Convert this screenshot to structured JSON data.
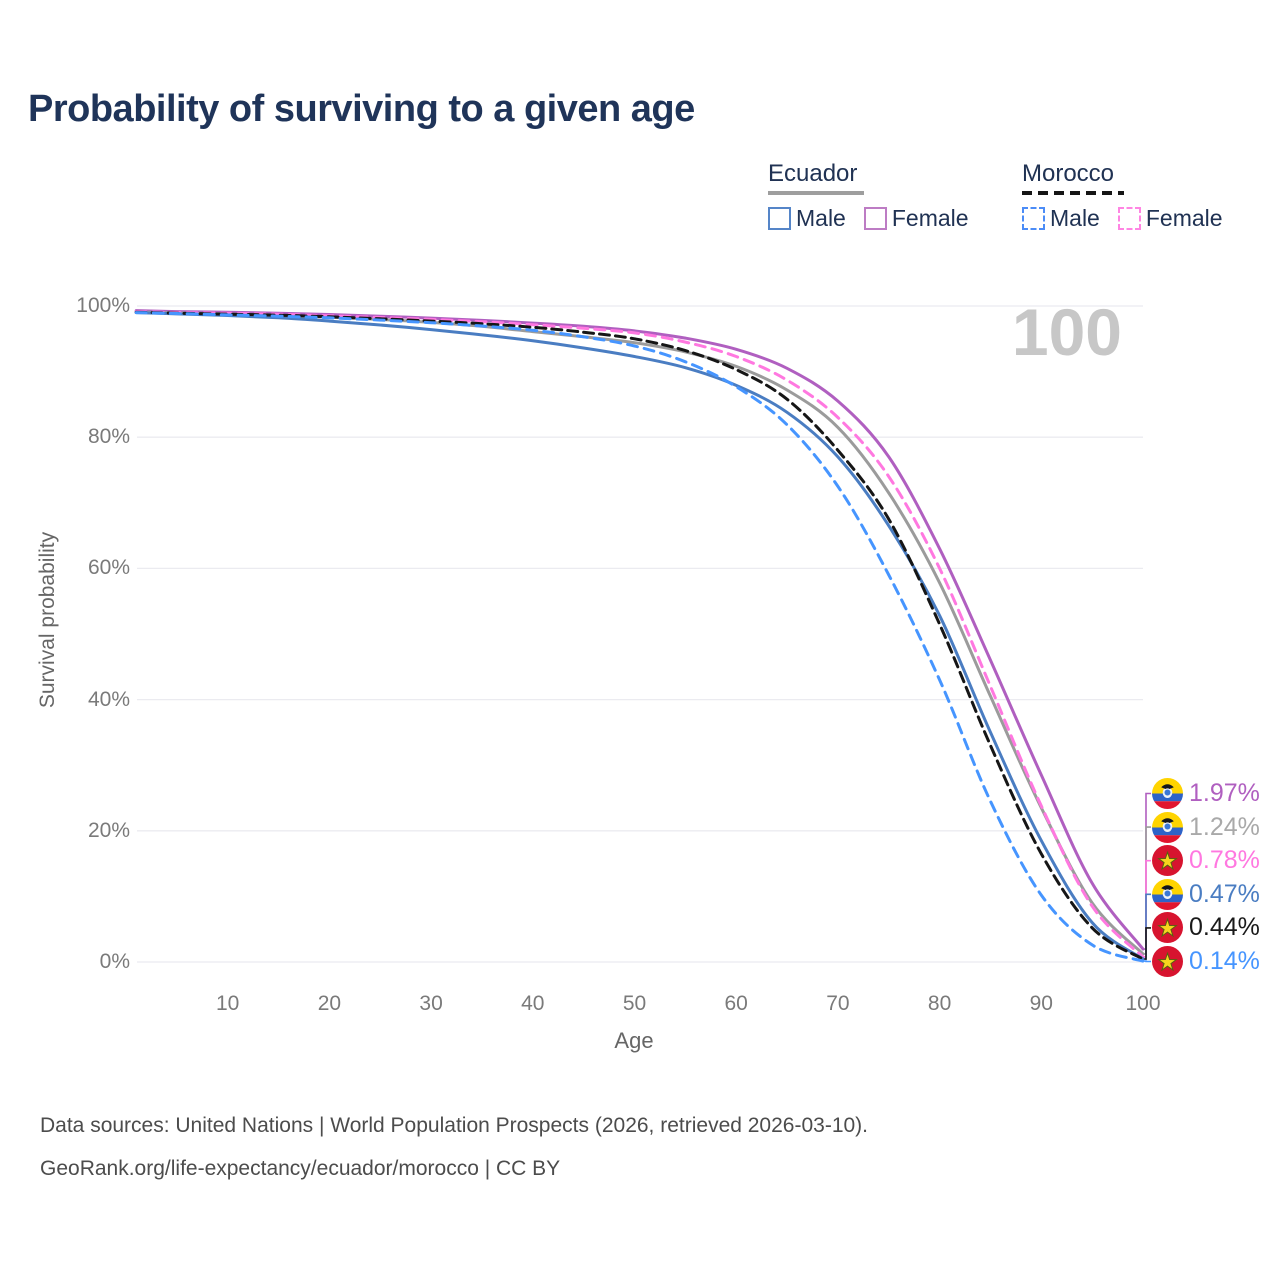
{
  "header": {
    "title": "Probability of surviving to a given age"
  },
  "legend": {
    "groups": [
      {
        "country": "Ecuador",
        "underline_style": "solid",
        "underline_color": "#9e9e9e",
        "items": [
          {
            "label": "Male",
            "box_color": "#5585c8",
            "box_style": "solid"
          },
          {
            "label": "Female",
            "box_color": "#bd7cc4",
            "box_style": "solid"
          }
        ]
      },
      {
        "country": "Morocco",
        "underline_style": "dashed",
        "underline_color": "#151515",
        "items": [
          {
            "label": "Male",
            "box_color": "#4b8cf7",
            "box_style": "dashed"
          },
          {
            "label": "Female",
            "box_color": "#ff85e3",
            "box_style": "dashed"
          }
        ]
      }
    ]
  },
  "chart_data": {
    "type": "line",
    "title": "Probability of surviving to a given age",
    "xlabel": "Age",
    "ylabel": "Survival probability",
    "xlim": [
      0,
      100
    ],
    "ylim": [
      0,
      100
    ],
    "x_ticks": [
      10,
      20,
      30,
      40,
      50,
      60,
      70,
      80,
      90,
      100
    ],
    "y_ticks": [
      {
        "value": 100,
        "label": "100%"
      },
      {
        "value": 80,
        "label": "80%"
      },
      {
        "value": 60,
        "label": "60%"
      },
      {
        "value": 40,
        "label": "40%"
      },
      {
        "value": 20,
        "label": "20%"
      },
      {
        "value": 0,
        "label": "0%"
      }
    ],
    "grid": true,
    "hover_age": "100",
    "legend_position": "top-right",
    "series": [
      {
        "name": "Ecuador Female",
        "country": "Ecuador",
        "sex": "Female",
        "flag": "ecuador",
        "color": "#b05fc0",
        "label_color": "#b05fc0",
        "dash": null,
        "end_label": "1.97%",
        "points": [
          [
            1,
            99.3
          ],
          [
            5,
            99.15
          ],
          [
            10,
            99.05
          ],
          [
            15,
            98.9
          ],
          [
            20,
            98.7
          ],
          [
            25,
            98.45
          ],
          [
            30,
            98.15
          ],
          [
            35,
            97.8
          ],
          [
            40,
            97.4
          ],
          [
            45,
            96.9
          ],
          [
            50,
            96.2
          ],
          [
            55,
            95.1
          ],
          [
            60,
            93.4
          ],
          [
            65,
            90.5
          ],
          [
            70,
            85.5
          ],
          [
            75,
            77.0
          ],
          [
            80,
            63.0
          ],
          [
            85,
            46.0
          ],
          [
            90,
            28.5
          ],
          [
            95,
            12.0
          ],
          [
            100,
            1.97
          ]
        ]
      },
      {
        "name": "Ecuador Both sexes",
        "country": "Ecuador",
        "sex": "Both",
        "flag": "ecuador",
        "color": "#9b9b9b",
        "label_color": "#a9a9a9",
        "dash": null,
        "end_label": "1.24%",
        "points": [
          [
            1,
            99.1
          ],
          [
            5,
            98.95
          ],
          [
            10,
            98.8
          ],
          [
            15,
            98.6
          ],
          [
            20,
            98.3
          ],
          [
            25,
            97.95
          ],
          [
            30,
            97.5
          ],
          [
            35,
            96.9
          ],
          [
            40,
            96.1
          ],
          [
            45,
            95.3
          ],
          [
            50,
            94.4
          ],
          [
            55,
            93.0
          ],
          [
            60,
            90.8
          ],
          [
            65,
            87.2
          ],
          [
            70,
            81.5
          ],
          [
            75,
            71.5
          ],
          [
            80,
            57.8
          ],
          [
            85,
            40.5
          ],
          [
            90,
            23.5
          ],
          [
            95,
            9.0
          ],
          [
            100,
            1.24
          ]
        ]
      },
      {
        "name": "Morocco Female",
        "country": "Morocco",
        "sex": "Female",
        "flag": "morocco",
        "color": "#ff78e0",
        "label_color": "#ff78e0",
        "dash": "10 7",
        "end_label": "0.78%",
        "points": [
          [
            1,
            99.15
          ],
          [
            5,
            99.0
          ],
          [
            10,
            98.9
          ],
          [
            15,
            98.75
          ],
          [
            20,
            98.5
          ],
          [
            25,
            98.25
          ],
          [
            30,
            97.95
          ],
          [
            35,
            97.6
          ],
          [
            40,
            97.15
          ],
          [
            45,
            96.6
          ],
          [
            50,
            95.9
          ],
          [
            55,
            94.5
          ],
          [
            60,
            92.3
          ],
          [
            65,
            88.7
          ],
          [
            70,
            83.0
          ],
          [
            75,
            74.0
          ],
          [
            80,
            60.0
          ],
          [
            85,
            42.0
          ],
          [
            90,
            23.8
          ],
          [
            95,
            8.5
          ],
          [
            100,
            0.78
          ]
        ]
      },
      {
        "name": "Ecuador Male",
        "country": "Ecuador",
        "sex": "Male",
        "flag": "ecuador",
        "color": "#4a7dc2",
        "label_color": "#4a7dc2",
        "dash": null,
        "end_label": "0.47%",
        "points": [
          [
            1,
            99.0
          ],
          [
            5,
            98.8
          ],
          [
            10,
            98.55
          ],
          [
            15,
            98.2
          ],
          [
            20,
            97.7
          ],
          [
            25,
            97.1
          ],
          [
            30,
            96.4
          ],
          [
            35,
            95.6
          ],
          [
            40,
            94.7
          ],
          [
            45,
            93.6
          ],
          [
            50,
            92.3
          ],
          [
            55,
            90.6
          ],
          [
            60,
            87.9
          ],
          [
            65,
            83.8
          ],
          [
            70,
            77.0
          ],
          [
            75,
            66.5
          ],
          [
            80,
            52.8
          ],
          [
            85,
            35.0
          ],
          [
            90,
            18.5
          ],
          [
            95,
            6.0
          ],
          [
            100,
            0.47
          ]
        ]
      },
      {
        "name": "Morocco Both sexes",
        "country": "Morocco",
        "sex": "Both",
        "flag": "morocco",
        "color": "#161616",
        "label_color": "#1a1a1a",
        "dash": "10 6",
        "end_label": "0.44%",
        "points": [
          [
            1,
            99.05
          ],
          [
            5,
            98.9
          ],
          [
            10,
            98.75
          ],
          [
            15,
            98.6
          ],
          [
            20,
            98.35
          ],
          [
            25,
            98.05
          ],
          [
            30,
            97.7
          ],
          [
            35,
            97.3
          ],
          [
            40,
            96.75
          ],
          [
            45,
            96.0
          ],
          [
            50,
            95.0
          ],
          [
            55,
            93.2
          ],
          [
            60,
            90.3
          ],
          [
            65,
            85.8
          ],
          [
            70,
            78.0
          ],
          [
            75,
            67.5
          ],
          [
            80,
            51.5
          ],
          [
            85,
            33.0
          ],
          [
            90,
            16.5
          ],
          [
            95,
            5.2
          ],
          [
            100,
            0.44
          ]
        ]
      },
      {
        "name": "Morocco Male",
        "country": "Morocco",
        "sex": "Male",
        "flag": "morocco",
        "color": "#4695ff",
        "label_color": "#4695ff",
        "dash": "10 7",
        "end_label": "0.14%",
        "points": [
          [
            1,
            99.0
          ],
          [
            5,
            98.85
          ],
          [
            10,
            98.65
          ],
          [
            15,
            98.45
          ],
          [
            20,
            98.2
          ],
          [
            25,
            97.85
          ],
          [
            30,
            97.45
          ],
          [
            35,
            96.95
          ],
          [
            40,
            96.3
          ],
          [
            45,
            95.3
          ],
          [
            50,
            93.9
          ],
          [
            55,
            91.5
          ],
          [
            60,
            87.7
          ],
          [
            65,
            81.9
          ],
          [
            70,
            72.5
          ],
          [
            75,
            59.0
          ],
          [
            80,
            43.0
          ],
          [
            85,
            24.5
          ],
          [
            90,
            10.2
          ],
          [
            95,
            2.6
          ],
          [
            100,
            0.14
          ]
        ]
      }
    ]
  },
  "footer": {
    "line1": "Data sources: United Nations | World Population Prospects (2026, retrieved 2026-03-10).",
    "line2": "GeoRank.org/life-expectancy/ecuador/morocco | CC BY"
  }
}
